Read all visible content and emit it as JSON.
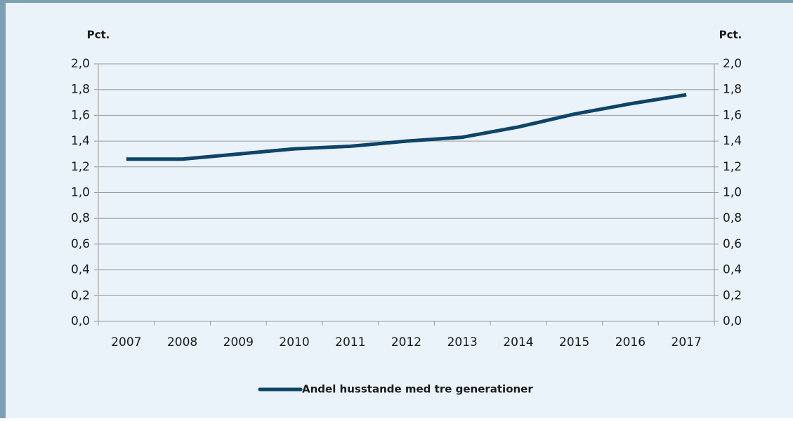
{
  "chart_data": {
    "type": "line",
    "y_label": "Pct.",
    "y2_label": "Pct.",
    "categories": [
      "2007",
      "2008",
      "2009",
      "2010",
      "2011",
      "2012",
      "2013",
      "2014",
      "2015",
      "2016",
      "2017"
    ],
    "series": [
      {
        "name": "Andel husstande med tre generationer",
        "color": "#0e4467",
        "values": [
          1.26,
          1.26,
          1.3,
          1.34,
          1.36,
          1.4,
          1.43,
          1.51,
          1.61,
          1.69,
          1.76
        ]
      }
    ],
    "ylim": [
      0,
      2
    ],
    "yticks": [
      {
        "value": 0,
        "label": "0,0"
      },
      {
        "value": 0.2,
        "label": "0,2"
      },
      {
        "value": 0.4,
        "label": "0,4"
      },
      {
        "value": 0.6,
        "label": "0,6"
      },
      {
        "value": 0.8,
        "label": "0,8"
      },
      {
        "value": 1.0,
        "label": "1,0"
      },
      {
        "value": 1.2,
        "label": "1,2"
      },
      {
        "value": 1.4,
        "label": "1,4"
      },
      {
        "value": 1.6,
        "label": "1,6"
      },
      {
        "value": 1.8,
        "label": "1,8"
      },
      {
        "value": 2.0,
        "label": "2,0"
      }
    ],
    "y2lim": [
      0,
      2
    ],
    "y2ticks": [
      {
        "value": 0,
        "label": "0,0"
      },
      {
        "value": 0.2,
        "label": "0,2"
      },
      {
        "value": 0.4,
        "label": "0,4"
      },
      {
        "value": 0.6,
        "label": "0,6"
      },
      {
        "value": 0.8,
        "label": "0,8"
      },
      {
        "value": 1.0,
        "label": "1,0"
      },
      {
        "value": 1.2,
        "label": "1,2"
      },
      {
        "value": 1.4,
        "label": "1,4"
      },
      {
        "value": 1.6,
        "label": "1,6"
      },
      {
        "value": 1.8,
        "label": "1,8"
      },
      {
        "value": 2.0,
        "label": "2,0"
      }
    ],
    "grid": true,
    "legend": "bottom"
  }
}
